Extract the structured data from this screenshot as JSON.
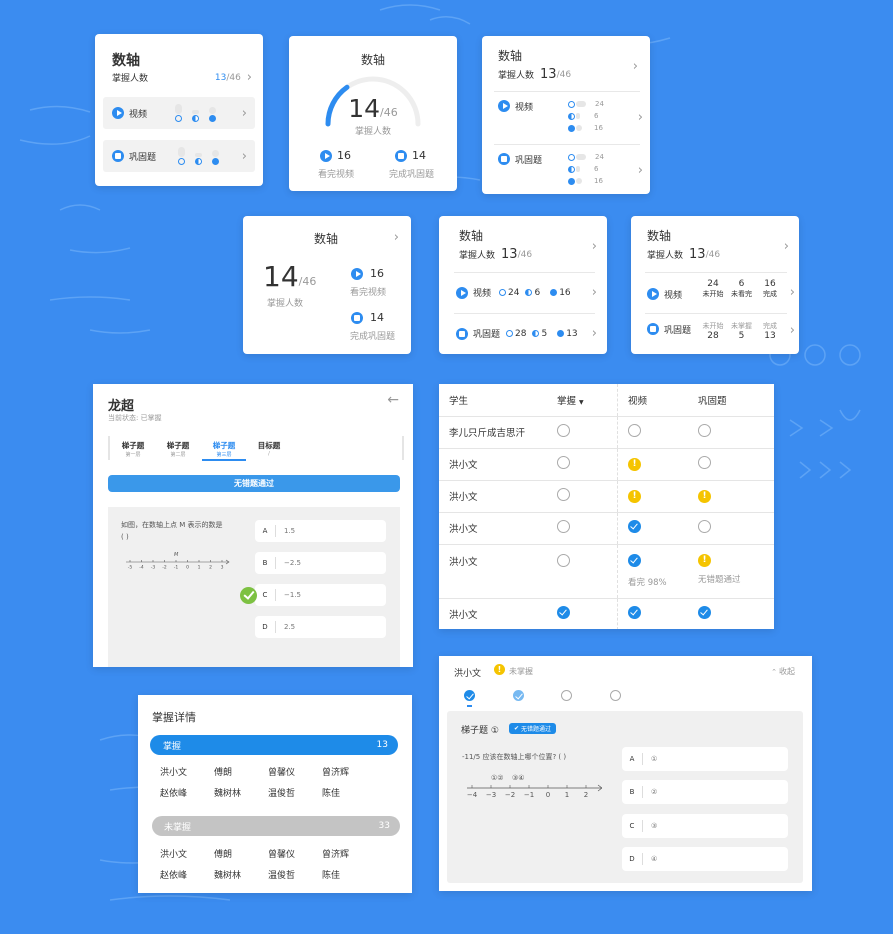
{
  "colors": {
    "background": "#3b8cf0",
    "accent": "#2d8cf0",
    "warn": "#f5c400",
    "success": "#7dc142",
    "grey": "#c4c4c4"
  },
  "card1": {
    "title": "数轴",
    "mastered_label": "掌握人数",
    "mastered": "13",
    "total": "/46",
    "rows": [
      {
        "label": "视频",
        "icon": "play-icon"
      },
      {
        "label": "巩固题",
        "icon": "quiz-icon"
      }
    ]
  },
  "card2": {
    "title": "数轴",
    "value": "14",
    "total": "/46",
    "progress": 0.304,
    "sub": "掌握人数",
    "left_value": "16",
    "left_label": "看完视频",
    "right_value": "14",
    "right_label": "完成巩固题"
  },
  "card3": {
    "title": "数轴",
    "mastered_label": "掌握人数",
    "mastered": "13",
    "total": "/46",
    "rows": [
      {
        "label": "视频",
        "values": [
          "24",
          "6",
          "16"
        ]
      },
      {
        "label": "巩固题",
        "values": [
          "24",
          "6",
          "16"
        ]
      }
    ]
  },
  "card4": {
    "title": "数轴",
    "value": "14",
    "total": "/46",
    "sub": "掌握人数",
    "a_value": "16",
    "a_label": "看完视频",
    "b_value": "14",
    "b_label": "完成巩固题"
  },
  "card5": {
    "title": "数轴",
    "mastered_label": "掌握人数",
    "mastered": "13",
    "total": "/46",
    "rows": [
      {
        "label": "视频",
        "values": [
          "24",
          "6",
          "16"
        ]
      },
      {
        "label": "巩固题",
        "values": [
          "28",
          "5",
          "13"
        ]
      }
    ]
  },
  "card6": {
    "title": "数轴",
    "mastered_label": "掌握人数",
    "mastered": "13",
    "total": "/46",
    "headers1": [
      "未开始",
      "未看完",
      "完成"
    ],
    "values1": [
      "24",
      "6",
      "16"
    ],
    "headers2": [
      "未开始",
      "未掌握",
      "完成"
    ],
    "values2": [
      "28",
      "5",
      "13"
    ],
    "row1_label": "视频",
    "row2_label": "巩固题"
  },
  "detail": {
    "name": "龙超",
    "status": "当前状态: 已掌握",
    "tabs": [
      {
        "title": "梯子题",
        "sub": "第一层"
      },
      {
        "title": "梯子题",
        "sub": "第二层"
      },
      {
        "title": "梯子题",
        "sub": "第三层"
      },
      {
        "title": "目标题",
        "sub": "/"
      }
    ],
    "banner": "无错题通过",
    "question": "如图，在数轴上点 M 表示的数是",
    "blank": "( )",
    "axis_point": "M",
    "axis_ticks": [
      "-5",
      "-4",
      "-3",
      "-2",
      "-1",
      "0",
      "1",
      "2",
      "3"
    ],
    "options": [
      {
        "key": "A",
        "text": "1.5"
      },
      {
        "key": "B",
        "text": "−2.5"
      },
      {
        "key": "C",
        "text": "−1.5"
      },
      {
        "key": "D",
        "text": "2.5"
      }
    ]
  },
  "table": {
    "headers": [
      "学生",
      "掌握",
      "视频",
      "巩固题"
    ],
    "rows": [
      {
        "name": "李儿只斤成吉思汗",
        "s": [
          "empty",
          "empty",
          "empty"
        ]
      },
      {
        "name": "洪小文",
        "s": [
          "empty",
          "warn",
          "empty"
        ]
      },
      {
        "name": "洪小文",
        "s": [
          "empty",
          "warn",
          "warn"
        ]
      },
      {
        "name": "洪小文",
        "s": [
          "empty",
          "check",
          "empty"
        ]
      },
      {
        "name": "洪小文",
        "s": [
          "empty",
          "check",
          "warn"
        ],
        "video_note": "看完 98%",
        "quiz_note": "无错题通过"
      },
      {
        "name": "洪小文",
        "s": [
          "check",
          "check",
          "check"
        ]
      }
    ]
  },
  "mastery": {
    "title": "掌握详情",
    "mastered_label": "掌握",
    "mastered_count": "13",
    "mastered_names": [
      "洪小文",
      "傅朗",
      "曾馨仪",
      "曾济辉",
      "赵依峰",
      "魏树林",
      "温俊哲",
      "陈佳"
    ],
    "unmastered_label": "未掌握",
    "unmastered_count": "33",
    "unmastered_names": [
      "洪小文",
      "傅朗",
      "曾馨仪",
      "曾济辉",
      "赵依峰",
      "魏树林",
      "温俊哲",
      "陈佳"
    ]
  },
  "student": {
    "name": "洪小文",
    "status": "未掌握",
    "collapse": "收起",
    "question_title": "梯子题 ①",
    "badge": "无错题通过",
    "question": "-11/5 应该在数轴上哪个位置? ( )",
    "marks": [
      "①②",
      "③④"
    ],
    "axis_ticks": [
      "−4",
      "−3",
      "−2",
      "−1",
      "0",
      "1",
      "2"
    ],
    "options": [
      {
        "key": "A",
        "text": "①"
      },
      {
        "key": "B",
        "text": "②"
      },
      {
        "key": "C",
        "text": "③"
      },
      {
        "key": "D",
        "text": "④"
      }
    ]
  }
}
